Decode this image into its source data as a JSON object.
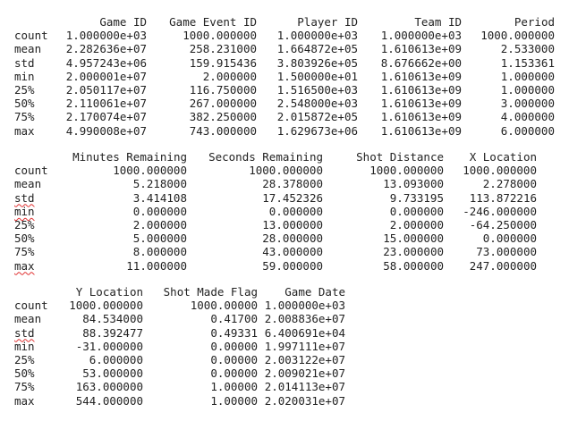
{
  "blocks": [
    {
      "columns": [
        "Game ID",
        "Game Event ID",
        "Player ID",
        "Team ID",
        "Period"
      ],
      "rows": [
        {
          "label": "count",
          "values": [
            "1.000000e+03",
            "1000.000000",
            "1.000000e+03",
            "1.000000e+03",
            "1000.000000"
          ]
        },
        {
          "label": "mean",
          "values": [
            "2.282636e+07",
            "258.231000",
            "1.664872e+05",
            "1.610613e+09",
            "2.533000"
          ]
        },
        {
          "label": "std",
          "values": [
            "4.957243e+06",
            "159.915436",
            "3.803926e+05",
            "8.676662e+00",
            "1.153361"
          ]
        },
        {
          "label": "min",
          "values": [
            "2.000001e+07",
            "2.000000",
            "1.500000e+01",
            "1.610613e+09",
            "1.000000"
          ]
        },
        {
          "label": "25%",
          "values": [
            "2.050117e+07",
            "116.750000",
            "1.516500e+03",
            "1.610613e+09",
            "1.000000"
          ]
        },
        {
          "label": "50%",
          "values": [
            "2.110061e+07",
            "267.000000",
            "2.548000e+03",
            "1.610613e+09",
            "3.000000"
          ]
        },
        {
          "label": "75%",
          "values": [
            "2.170074e+07",
            "382.250000",
            "2.015872e+05",
            "1.610613e+09",
            "4.000000"
          ]
        },
        {
          "label": "max",
          "values": [
            "4.990008e+07",
            "743.000000",
            "1.629673e+06",
            "1.610613e+09",
            "6.000000"
          ]
        }
      ]
    },
    {
      "columns": [
        "Minutes Remaining",
        "Seconds Remaining",
        "Shot Distance",
        "X Location"
      ],
      "rows": [
        {
          "label": "count",
          "values": [
            "1000.000000",
            "1000.000000",
            "1000.000000",
            "1000.000000"
          ]
        },
        {
          "label": "mean",
          "values": [
            "5.218000",
            "28.378000",
            "13.093000",
            "2.278000"
          ]
        },
        {
          "label": "std",
          "values": [
            "3.414108",
            "17.452326",
            "9.733195",
            "113.872216"
          ]
        },
        {
          "label": "min",
          "values": [
            "0.000000",
            "0.000000",
            "0.000000",
            "-246.000000"
          ]
        },
        {
          "label": "25%",
          "values": [
            "2.000000",
            "13.000000",
            "2.000000",
            "-64.250000"
          ]
        },
        {
          "label": "50%",
          "values": [
            "5.000000",
            "28.000000",
            "15.000000",
            "0.000000"
          ]
        },
        {
          "label": "75%",
          "values": [
            "8.000000",
            "43.000000",
            "23.000000",
            "73.000000"
          ]
        },
        {
          "label": "max",
          "values": [
            "11.000000",
            "59.000000",
            "58.000000",
            "247.000000"
          ]
        }
      ]
    },
    {
      "columns": [
        "Y Location",
        "Shot Made Flag",
        "Game Date"
      ],
      "rows": [
        {
          "label": "count",
          "values": [
            "1000.000000",
            "1000.00000",
            "1.000000e+03"
          ]
        },
        {
          "label": "mean",
          "values": [
            "84.534000",
            "0.41700",
            "2.008836e+07"
          ]
        },
        {
          "label": "std",
          "values": [
            "88.392477",
            "0.49331",
            "6.400691e+04"
          ]
        },
        {
          "label": "min",
          "values": [
            "-31.000000",
            "0.00000",
            "1.997111e+07"
          ]
        },
        {
          "label": "25%",
          "values": [
            "6.000000",
            "0.00000",
            "2.003122e+07"
          ]
        },
        {
          "label": "50%",
          "values": [
            "53.000000",
            "0.00000",
            "2.009021e+07"
          ]
        },
        {
          "label": "75%",
          "values": [
            "163.000000",
            "1.00000",
            "2.014113e+07"
          ]
        },
        {
          "label": "max",
          "values": [
            "544.000000",
            "1.00000",
            "2.020031e+07"
          ]
        }
      ]
    }
  ],
  "squiggle_rows": {
    "block2": [
      "std",
      "min",
      "max"
    ],
    "block3": [
      "std"
    ]
  },
  "colors": {
    "text": "#222222",
    "background": "#ffffff",
    "spellcheck": "#e03030"
  }
}
